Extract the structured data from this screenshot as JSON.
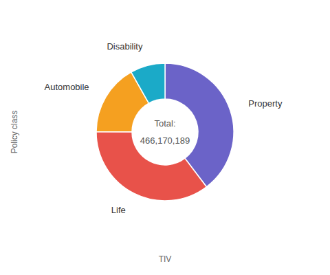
{
  "chart_data": {
    "type": "donut",
    "categories": [
      "Property",
      "Life",
      "Automobile",
      "Disability"
    ],
    "values": [
      185000000,
      165000000,
      78000000,
      38170189
    ],
    "colors": [
      "#6B63C8",
      "#E8524A",
      "#F5A020",
      "#1BAAC8"
    ],
    "annotations": [
      "Total:",
      "466,170,189"
    ],
    "xlabel": "TIV",
    "ylabel": "Policy class"
  }
}
